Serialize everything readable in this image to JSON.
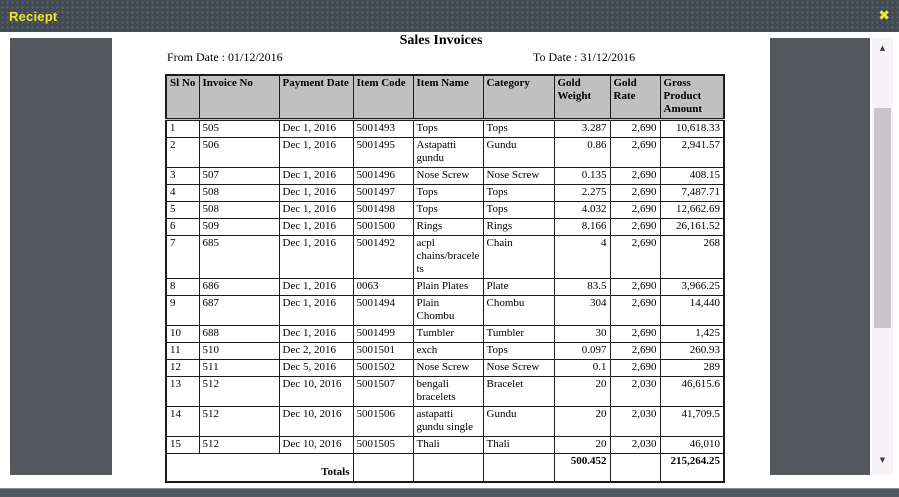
{
  "window": {
    "title": "Reciept",
    "close_icon": "✖"
  },
  "report": {
    "title": "Sales Invoices",
    "from_date": "From Date : 01/12/2016",
    "to_date": "To Date : 31/12/2016"
  },
  "scrollbar": {
    "up_icon": "▲",
    "down_icon": "▼"
  },
  "colors": {
    "titlebar_bg": "#414a52",
    "titlebar_text": "#eee829",
    "viewer_panel": "#54585c",
    "table_header_bg": "#c0c0c0",
    "scroll_track": "#f7f2f5",
    "scroll_thumb": "#c8c5c8"
  },
  "table": {
    "columns": [
      "Sl No",
      "Invoice No",
      "Payment Date",
      "Item Code",
      "Item Name",
      "Category",
      "Gold Weight",
      "Gold Rate",
      "Gross Product Amount"
    ],
    "numeric_columns_from_index": 6,
    "rows": [
      [
        "1",
        "505",
        "Dec 1, 2016",
        "5001493",
        "Tops",
        "Tops",
        "3.287",
        "2,690",
        "10,618.33"
      ],
      [
        "2",
        "506",
        "Dec 1, 2016",
        "5001495",
        "Astapatti gundu",
        "Gundu",
        "0.86",
        "2,690",
        "2,941.57"
      ],
      [
        "3",
        "507",
        "Dec 1, 2016",
        "5001496",
        "Nose Screw",
        "Nose Screw",
        "0.135",
        "2,690",
        "408.15"
      ],
      [
        "4",
        "508",
        "Dec 1, 2016",
        "5001497",
        "Tops",
        "Tops",
        "2.275",
        "2,690",
        "7,487.71"
      ],
      [
        "5",
        "508",
        "Dec 1, 2016",
        "5001498",
        "Tops",
        "Tops",
        "4.032",
        "2,690",
        "12,662.69"
      ],
      [
        "6",
        "509",
        "Dec 1, 2016",
        "5001500",
        "Rings",
        "Rings",
        "8.166",
        "2,690",
        "26,161.52"
      ],
      [
        "7",
        "685",
        "Dec 1, 2016",
        "5001492",
        "acpl chains/bracelets",
        "Chain",
        "4",
        "2,690",
        "268"
      ],
      [
        "8",
        "686",
        "Dec 1, 2016",
        "0063",
        "Plain Plates",
        "Plate",
        "83.5",
        "2,690",
        "3,966.25"
      ],
      [
        "9",
        "687",
        "Dec 1, 2016",
        "5001494",
        "Plain Chombu",
        "Chombu",
        "304",
        "2,690",
        "14,440"
      ],
      [
        "10",
        "688",
        "Dec 1, 2016",
        "5001499",
        "Tumbler",
        "Tumbler",
        "30",
        "2,690",
        "1,425"
      ],
      [
        "11",
        "510",
        "Dec 2, 2016",
        "5001501",
        "exch",
        "Tops",
        "0.097",
        "2,690",
        "260.93"
      ],
      [
        "12",
        "511",
        "Dec 5, 2016",
        "5001502",
        "Nose Screw",
        "Nose Screw",
        "0.1",
        "2,690",
        "289"
      ],
      [
        "13",
        "512",
        "Dec 10, 2016",
        "5001507",
        "bengali bracelets",
        "Bracelet",
        "20",
        "2,030",
        "46,615.6"
      ],
      [
        "14",
        "512",
        "Dec 10, 2016",
        "5001506",
        "astapatti gundu single",
        "Gundu",
        "20",
        "2,030",
        "41,709.5"
      ],
      [
        "15",
        "512",
        "Dec 10, 2016",
        "5001505",
        "Thali",
        "Thali",
        "20",
        "2,030",
        "46,010"
      ]
    ],
    "totals": {
      "label": "Totals",
      "gold_weight": "500.452",
      "gold_rate": "",
      "gross_product_amount": "215,264.25"
    }
  }
}
